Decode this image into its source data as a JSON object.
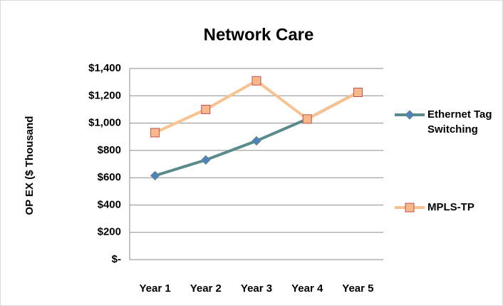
{
  "chart_data": {
    "type": "line",
    "title": "Network Care",
    "y_label": "OP EX  ($ Thousand",
    "categories": [
      "Year 1",
      "Year 2",
      "Year 3",
      "Year 4",
      "Year 5"
    ],
    "series": [
      {
        "name": "Ethernet Tag Switching",
        "color": "#5a8b8b",
        "marker_color": "#4f81bd",
        "values": [
          615,
          730,
          870,
          1030,
          1225
        ]
      },
      {
        "name": "MPLS-TP",
        "color": "#f9c391",
        "marker_color": "#f9b88a",
        "values": [
          930,
          1100,
          1310,
          1030,
          1225
        ]
      }
    ],
    "ylim": [
      0,
      1400
    ],
    "yticks": [
      {
        "value": 0,
        "label": "$-"
      },
      {
        "value": 200,
        "label": "$200"
      },
      {
        "value": 400,
        "label": "$400"
      },
      {
        "value": 600,
        "label": "$600"
      },
      {
        "value": 800,
        "label": "$800"
      },
      {
        "value": 1000,
        "label": "$1,000"
      },
      {
        "value": 1200,
        "label": "$1,200"
      },
      {
        "value": 1400,
        "label": "$1,400"
      }
    ],
    "grid": true,
    "legend": "right"
  }
}
